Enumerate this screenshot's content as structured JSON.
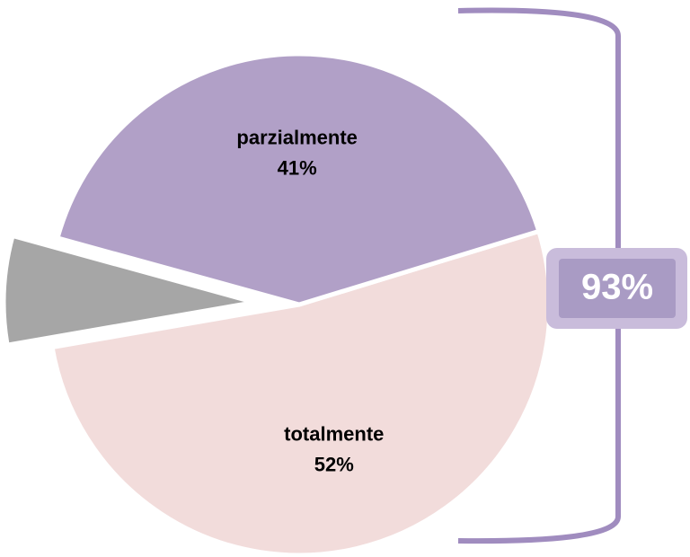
{
  "chart_data": {
    "type": "pie",
    "categories": [
      "parzialmente",
      null,
      "totalmente"
    ],
    "values": [
      41,
      7,
      52
    ],
    "value_labels": [
      "41%",
      null,
      "52%"
    ],
    "colors": [
      "#b1a0c7",
      "#a6a6a6",
      "#f2dcdb"
    ],
    "exploded": [
      false,
      true,
      false
    ],
    "annotation": "93%"
  }
}
